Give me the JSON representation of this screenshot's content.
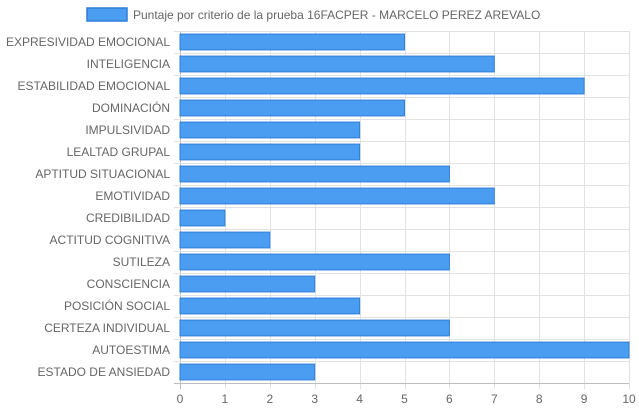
{
  "chart_data": {
    "type": "bar",
    "orientation": "horizontal",
    "categories": [
      "EXPRESIVIDAD EMOCIONAL",
      "INTELIGENCIA",
      "ESTABILIDAD EMOCIONAL",
      "DOMINACIÓN",
      "IMPULSIVIDAD",
      "LEALTAD GRUPAL",
      "APTITUD SITUACIONAL",
      "EMOTIVIDAD",
      "CREDIBILIDAD",
      "ACTITUD COGNITIVA",
      "SUTILEZA",
      "CONSCIENCIA",
      "POSICIÓN SOCIAL",
      "CERTEZA INDIVIDUAL",
      "AUTOESTIMA",
      "ESTADO DE ANSIEDAD"
    ],
    "series": [
      {
        "name": "Puntaje por criterio de la prueba 16FACPER - MARCELO PEREZ AREVALO",
        "values": [
          5,
          7,
          9,
          5,
          4,
          4,
          6,
          7,
          1,
          2,
          6,
          3,
          4,
          6,
          10,
          3
        ],
        "color": "#4a9df0",
        "border_color": "#2f7fd8"
      }
    ],
    "x_ticks": [
      "0",
      "1",
      "2",
      "3",
      "4",
      "5",
      "6",
      "7",
      "8",
      "9",
      "10"
    ],
    "xlim": [
      0,
      10
    ],
    "grid": true,
    "legend_position": "top",
    "title": "",
    "xlabel": "",
    "ylabel": ""
  }
}
